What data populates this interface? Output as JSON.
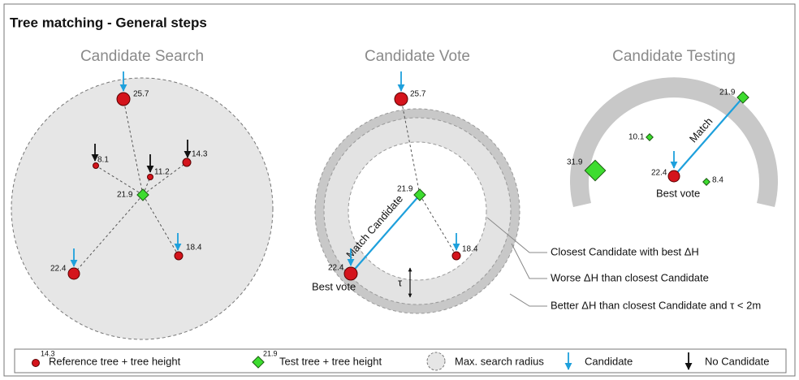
{
  "title": "Tree matching - General steps",
  "panels": [
    {
      "title": "Candidate Search",
      "labels": [
        "25.7",
        "8.1",
        "11.2",
        "14.3",
        "21.9",
        "22.4",
        "18.4"
      ]
    },
    {
      "title": "Candidate Vote",
      "labels": [
        "25.7",
        "21.9",
        "18.4",
        "22.4"
      ],
      "match": "Match Candidate",
      "best": "Best vote",
      "tau": "τ"
    },
    {
      "title": "Candidate Testing",
      "labels": [
        "21.9",
        "10.1",
        "31.9",
        "22.4",
        "8.4"
      ],
      "match": "Match",
      "best": "Best vote"
    }
  ],
  "callouts": [
    "Closest Candidate with best ΔH",
    "Worse ΔH than closest Candidate",
    "Better ΔH than closest Candidate and τ < 2m"
  ],
  "legend": [
    {
      "sample": "14.3",
      "text": "Reference tree + tree height"
    },
    {
      "sample": "21.9",
      "text": "Test tree + tree height"
    },
    {
      "text": "Max. search radius"
    },
    {
      "text": "Candidate"
    },
    {
      "text": "No Candidate"
    }
  ]
}
